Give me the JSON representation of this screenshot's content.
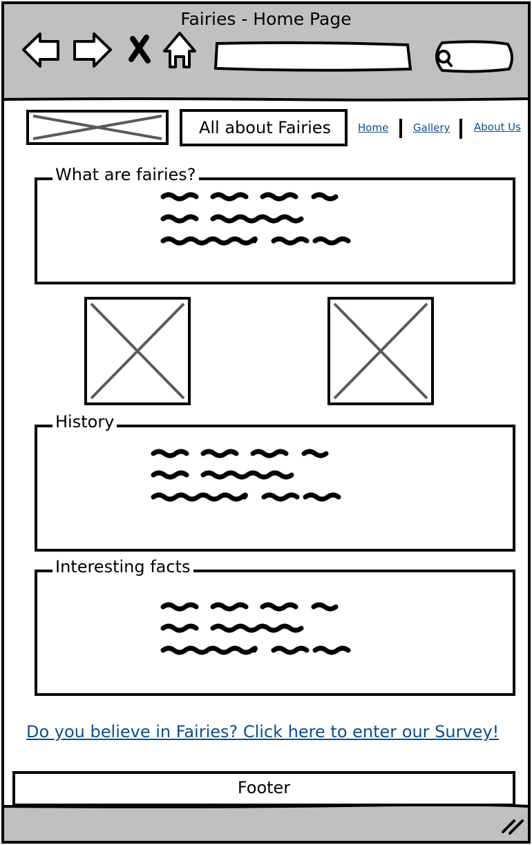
{
  "window": {
    "title": "Fairies - Home Page",
    "search_value": "",
    "address_value": ""
  },
  "header": {
    "logo_placeholder": "image-placeholder",
    "site_title": "All about Fairies",
    "nav": [
      {
        "label": "Home"
      },
      {
        "label": "Gallery"
      },
      {
        "label": "About Us"
      }
    ]
  },
  "sections": [
    {
      "heading": "What are fairies?"
    },
    {
      "heading": "History"
    },
    {
      "heading": "Interesting facts"
    }
  ],
  "images": [
    "image-placeholder",
    "image-placeholder"
  ],
  "survey_link": "Do you believe in Fairies? Click here to enter our Survey!",
  "footer": {
    "label": "Footer"
  },
  "colors": {
    "chrome": "#c0c0c0",
    "link": "#0b4f8a",
    "placeholder_cross": "#5a5a5a"
  },
  "icons": [
    "back-arrow-icon",
    "forward-arrow-icon",
    "close-icon",
    "home-icon",
    "search-icon",
    "resize-grip-icon"
  ]
}
